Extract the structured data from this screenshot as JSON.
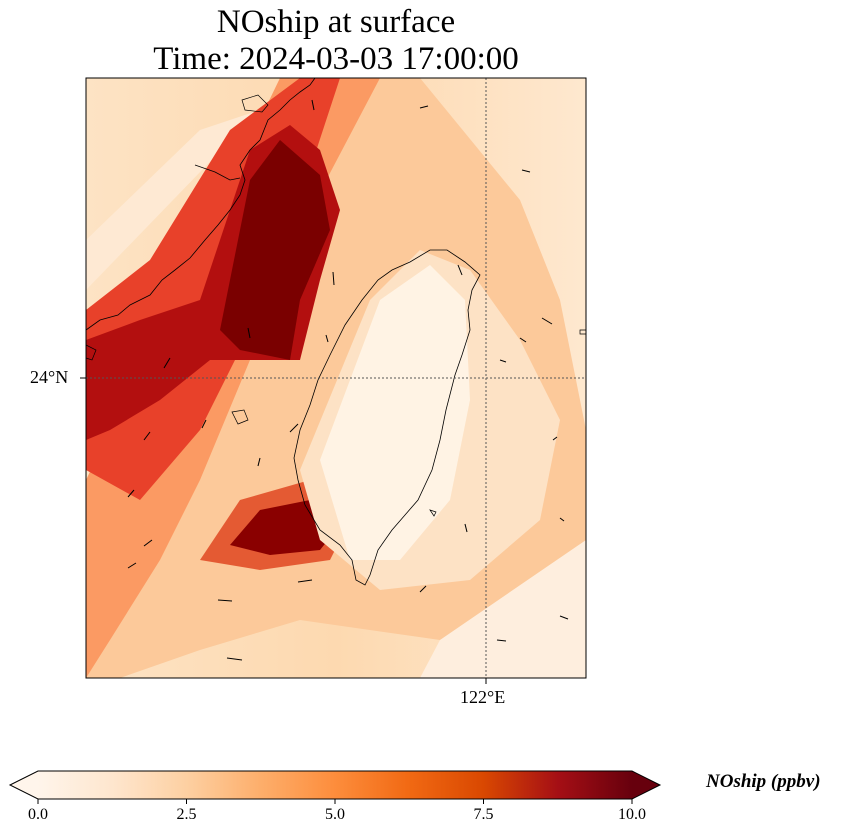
{
  "title": {
    "line1": "NOship at surface",
    "line2": "Time: 2024-03-03 17:00:00"
  },
  "axes": {
    "lat_tick": "24°N",
    "lon_tick": "122°E",
    "gridlines": "dotted"
  },
  "colorbar": {
    "label": "NOship (ppbv)",
    "ticks": [
      "0.0",
      "2.5",
      "5.0",
      "7.5",
      "10.0"
    ],
    "min": 0,
    "max": 10,
    "extend": "both",
    "colormap": [
      "#fff5eb",
      "#fee6ce",
      "#fdd0a2",
      "#fdae6b",
      "#fd8d3c",
      "#f16913",
      "#d94801",
      "#a50f15",
      "#67000d"
    ]
  },
  "map": {
    "region": "Taiwan Strait",
    "features": [
      "coastline",
      "wind-vectors",
      "concentration-field"
    ]
  }
}
